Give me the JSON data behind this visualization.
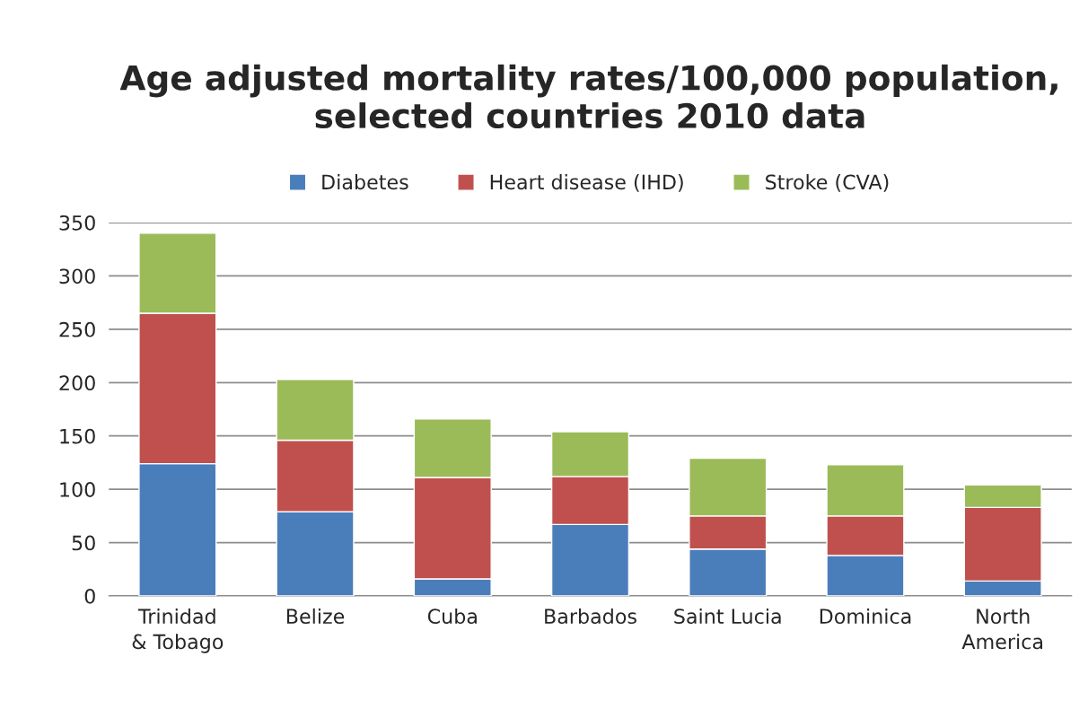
{
  "chart_data": {
    "type": "bar",
    "title": "Age adjusted mortality rates/100,000 population, selected countries 2010 data",
    "categories": [
      "Trinidad & Tobago",
      "Belize",
      "Cuba",
      "Barbados",
      "Saint Lucia",
      "Dominica",
      "North America"
    ],
    "stacked": true,
    "series": [
      {
        "name": "Diabetes",
        "color": "#4a7ebb",
        "values": [
          124,
          79,
          16,
          67,
          44,
          38,
          14
        ]
      },
      {
        "name": "Heart disease (IHD)",
        "color": "#c0504d",
        "values": [
          141,
          67,
          95,
          45,
          31,
          37,
          69
        ]
      },
      {
        "name": "Stroke (CVA)",
        "color": "#9bbb59",
        "values": [
          75,
          57,
          55,
          42,
          54,
          48,
          21
        ]
      }
    ],
    "ylim": [
      0,
      350
    ],
    "yticks": [
      0,
      50,
      100,
      150,
      200,
      250,
      300,
      350
    ],
    "grid": "y",
    "legend": "top"
  }
}
